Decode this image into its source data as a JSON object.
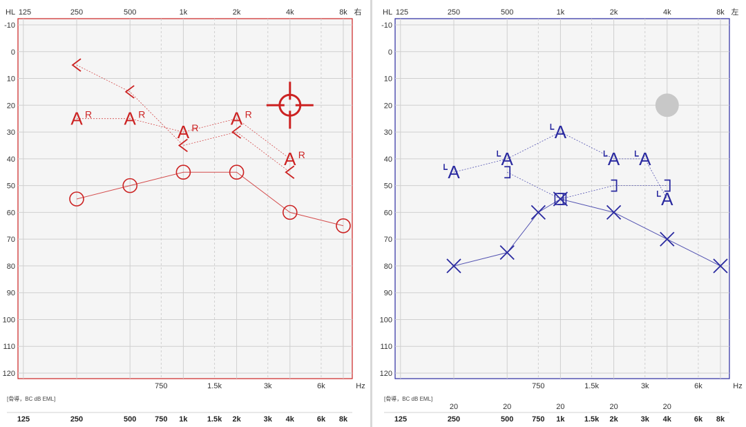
{
  "colors": {
    "right_ear": "#cc2222",
    "left_ear": "#2a2aa0",
    "grid": "#cfcfcf",
    "plot_bg": "#f5f5f5",
    "no_response_marker": "#c8c8c8"
  },
  "chart_data": [
    {
      "type": "scatter",
      "panel": "right",
      "ear_label": "右",
      "hl_label": "HL",
      "hz_label": "Hz",
      "footer_note": "[骨導，BC dB EML]",
      "x_scale": "log",
      "y_inverted": true,
      "xlim": [
        125,
        8000
      ],
      "ylim": [
        -10,
        120
      ],
      "grid": true,
      "top_ticks": [
        "125",
        "250",
        "500",
        "1k",
        "2k",
        "4k",
        "8k"
      ],
      "bottom_ticks": [
        "750",
        "1.5k",
        "3k",
        "6k"
      ],
      "y_ticks": [
        "-10",
        "0",
        "10",
        "20",
        "30",
        "40",
        "50",
        "60",
        "70",
        "80",
        "90",
        "100",
        "110",
        "120"
      ],
      "bc_masking_row": [],
      "freq_row": [
        "125",
        "250",
        "500",
        "750",
        "1k",
        "1.5k",
        "2k",
        "3k",
        "4k",
        "6k",
        "8k"
      ],
      "series": [
        {
          "symbol": "bc_unmasked",
          "glyph": "<",
          "points": [
            [
              250,
              5
            ],
            [
              500,
              15
            ],
            [
              1000,
              35
            ],
            [
              2000,
              30
            ],
            [
              4000,
              45
            ]
          ]
        },
        {
          "symbol": "sound_field_aided",
          "glyph": "A",
          "superscript": "R",
          "points": [
            [
              250,
              25
            ],
            [
              500,
              25
            ],
            [
              1000,
              30
            ],
            [
              2000,
              25
            ],
            [
              4000,
              40
            ]
          ]
        },
        {
          "symbol": "ac_unmasked",
          "glyph": "○",
          "points": [
            [
              250,
              55
            ],
            [
              500,
              50
            ],
            [
              1000,
              45
            ],
            [
              2000,
              45
            ],
            [
              4000,
              60
            ],
            [
              8000,
              65
            ]
          ]
        },
        {
          "symbol": "tinnitus_match",
          "glyph": "⌖",
          "points": [
            [
              4000,
              20
            ]
          ]
        }
      ]
    },
    {
      "type": "scatter",
      "panel": "left",
      "ear_label": "左",
      "hl_label": "HL",
      "hz_label": "Hz",
      "footer_note": "[骨導，BC dB EML]",
      "x_scale": "log",
      "y_inverted": true,
      "xlim": [
        125,
        8000
      ],
      "ylim": [
        -10,
        120
      ],
      "grid": true,
      "top_ticks": [
        "125",
        "250",
        "500",
        "1k",
        "2k",
        "4k",
        "8k"
      ],
      "bottom_ticks": [
        "750",
        "1.5k",
        "3k",
        "6k"
      ],
      "y_ticks": [
        "-10",
        "0",
        "10",
        "20",
        "30",
        "40",
        "50",
        "60",
        "70",
        "80",
        "90",
        "100",
        "110",
        "120"
      ],
      "bc_masking_row": [
        {
          "freq": 250,
          "label": "20"
        },
        {
          "freq": 500,
          "label": "20"
        },
        {
          "freq": 1000,
          "label": "20"
        },
        {
          "freq": 2000,
          "label": "20"
        },
        {
          "freq": 4000,
          "label": "20"
        }
      ],
      "freq_row": [
        "125",
        "250",
        "500",
        "750",
        "1k",
        "1.5k",
        "2k",
        "3k",
        "4k",
        "6k",
        "8k"
      ],
      "series": [
        {
          "symbol": "sound_field_aided",
          "glyph": "A",
          "points": [
            [
              250,
              45
            ],
            [
              500,
              40
            ],
            [
              1000,
              30
            ],
            [
              2000,
              40
            ],
            [
              3000,
              40
            ],
            [
              4000,
              55
            ]
          ]
        },
        {
          "symbol": "bc_masked",
          "glyph": "]",
          "points": [
            [
              500,
              45
            ],
            [
              1000,
              55
            ],
            [
              2000,
              50
            ],
            [
              4000,
              50
            ]
          ]
        },
        {
          "symbol": "ac_masked",
          "glyph": "□",
          "points": [
            [
              1000,
              55
            ]
          ]
        },
        {
          "symbol": "ac_unmasked",
          "glyph": "×",
          "points": [
            [
              250,
              80
            ],
            [
              500,
              75
            ],
            [
              750,
              60
            ],
            [
              1000,
              55
            ],
            [
              2000,
              60
            ],
            [
              4000,
              70
            ],
            [
              8000,
              80
            ]
          ]
        },
        {
          "symbol": "no_response",
          "glyph": "●",
          "points": [
            [
              4000,
              20
            ]
          ]
        }
      ]
    }
  ]
}
